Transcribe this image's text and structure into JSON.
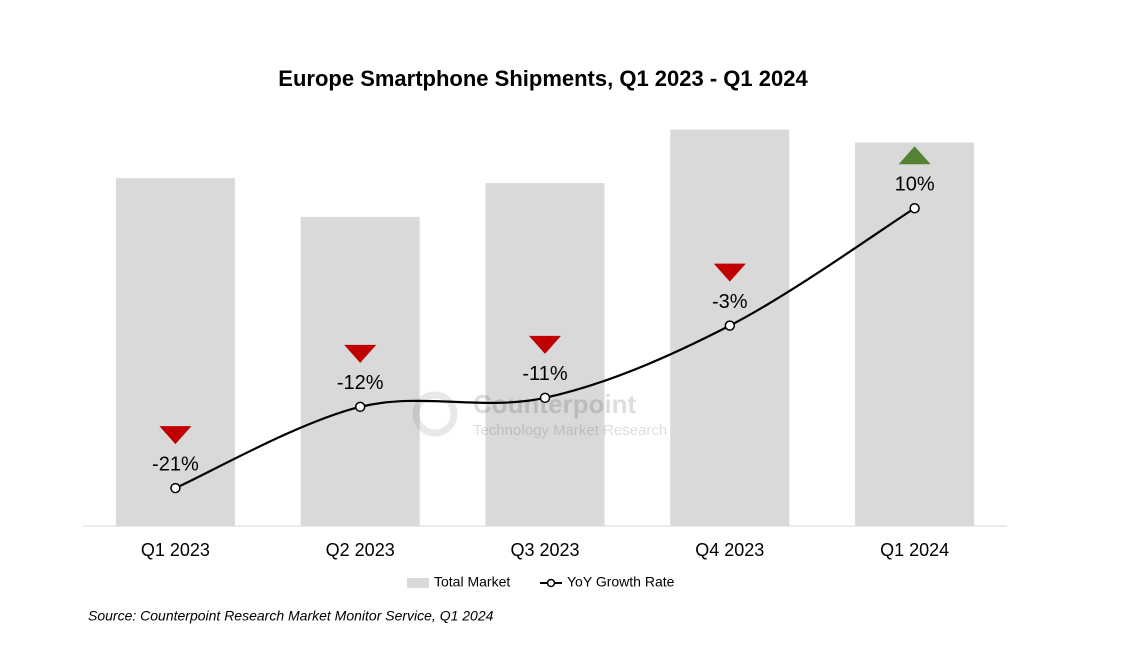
{
  "chart_data": {
    "type": "bar_line",
    "title": "Europe Smartphone Shipments, Q1 2023 - Q1 2024",
    "categories": [
      "Q1 2023",
      "Q2 2023",
      "Q3 2023",
      "Q4 2023",
      "Q1 2024"
    ],
    "series": [
      {
        "name": "Total Market",
        "color": "#d9d9d9",
        "type": "bar",
        "values": [
          35.1,
          31.2,
          34.6,
          40.0,
          38.7
        ]
      },
      {
        "name": "YoY Growth Rate",
        "color": "#000000",
        "type": "line",
        "axis": "y2",
        "values": [
          -21,
          -12,
          -11,
          -3,
          10
        ],
        "value_labels": [
          "-21%",
          "-12%",
          "-11%",
          "-3%",
          "10%"
        ]
      }
    ],
    "ylim": [
      0,
      44
    ],
    "y2lim": [
      -25.2,
      23.1
    ],
    "up_color": "#548235",
    "down_color": "#c00000",
    "watermark": [
      "Counterpoint",
      "Technology Market Research"
    ],
    "source": "Source: Counterpoint Research Market Monitor Service, Q1 2024"
  }
}
